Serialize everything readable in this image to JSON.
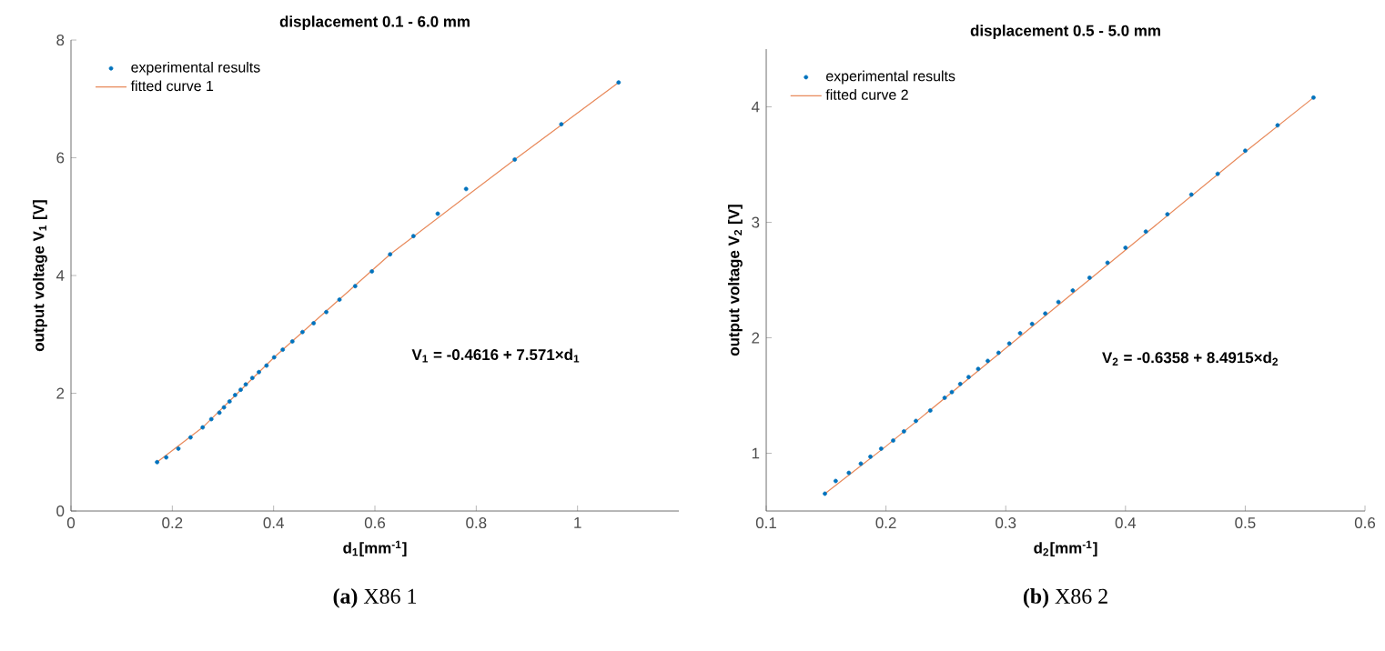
{
  "chart_data": [
    {
      "type": "scatter",
      "title": "displacement 0.1 - 6.0 mm",
      "xlabel": "d$_{1}$[mm$^{-1}$]",
      "ylabel": "output voltage V$_{1}$ [V]",
      "xlim": [
        0,
        1.2
      ],
      "xticks": [
        0,
        0.2,
        0.4,
        0.6,
        0.8,
        1
      ],
      "ylim": [
        0,
        8
      ],
      "yticks": [
        0,
        2,
        4,
        6,
        8
      ],
      "legend": "top left",
      "grid": false,
      "annotations": [
        "V$_{1}$ = -0.4616 + 7.571×d$_{1}$",
        "**(a)** X86 1"
      ],
      "series": [
        {
          "name": "experimental results",
          "type": "scatter",
          "marker": "circle",
          "color": "#0072bd",
          "x": [
            0.17,
            0.188,
            0.212,
            0.236,
            0.26,
            0.277,
            0.293,
            0.302,
            0.313,
            0.324,
            0.335,
            0.345,
            0.358,
            0.371,
            0.386,
            0.401,
            0.418,
            0.437,
            0.457,
            0.479,
            0.504,
            0.53,
            0.561,
            0.594,
            0.63,
            0.676,
            0.724,
            0.78,
            0.876,
            0.968,
            1.081
          ],
          "values": [
            0.83,
            0.91,
            1.06,
            1.25,
            1.42,
            1.56,
            1.67,
            1.76,
            1.86,
            1.97,
            2.06,
            2.15,
            2.26,
            2.36,
            2.47,
            2.61,
            2.74,
            2.88,
            3.04,
            3.19,
            3.38,
            3.59,
            3.82,
            4.07,
            4.36,
            4.67,
            5.05,
            5.47,
            5.97,
            6.57,
            7.28
          ]
        },
        {
          "name": "fitted curve 1",
          "type": "line",
          "marker": "none",
          "line_style": "solid",
          "color": "#e8895a",
          "x": [
            0.17,
            0.26,
            0.401,
            0.63,
            0.876,
            1.081
          ],
          "values": [
            0.83,
            1.42,
            2.61,
            4.36,
            5.97,
            7.28
          ]
        }
      ]
    },
    {
      "type": "scatter",
      "title": "displacement 0.5 - 5.0 mm",
      "xlabel": "d$_{2}$[mm$^{-1}$]",
      "ylabel": "output voltage V$_{2}$ [V]",
      "xlim": [
        0.1,
        0.6
      ],
      "xticks": [
        0.1,
        0.2,
        0.3,
        0.4,
        0.5,
        0.6
      ],
      "ylim": [
        0.5,
        4.5
      ],
      "yticks": [
        1,
        2,
        3,
        4
      ],
      "legend": "top left",
      "grid": false,
      "annotations": [
        "V$_{2}$ = -0.6358 + 8.4915×d$_{2}$",
        "**(b)** X86 2"
      ],
      "series": [
        {
          "name": "experimental results",
          "type": "scatter",
          "marker": "circle",
          "color": "#0072bd",
          "x": [
            0.149,
            0.158,
            0.169,
            0.179,
            0.187,
            0.196,
            0.206,
            0.215,
            0.225,
            0.237,
            0.249,
            0.255,
            0.262,
            0.269,
            0.277,
            0.285,
            0.294,
            0.303,
            0.312,
            0.322,
            0.333,
            0.344,
            0.356,
            0.37,
            0.385,
            0.4,
            0.417,
            0.435,
            0.455,
            0.477,
            0.5,
            0.527,
            0.557
          ],
          "values": [
            0.65,
            0.76,
            0.83,
            0.91,
            0.97,
            1.04,
            1.11,
            1.19,
            1.28,
            1.37,
            1.48,
            1.53,
            1.6,
            1.66,
            1.73,
            1.8,
            1.87,
            1.95,
            2.04,
            2.12,
            2.21,
            2.31,
            2.41,
            2.52,
            2.65,
            2.78,
            2.92,
            3.07,
            3.24,
            3.42,
            3.62,
            3.84,
            4.08
          ]
        },
        {
          "name": "fitted curve 2",
          "type": "line",
          "marker": "none",
          "line_style": "solid",
          "color": "#e8895a",
          "x": [
            0.149,
            0.2,
            0.3,
            0.4,
            0.5,
            0.557
          ],
          "values": [
            0.65,
            1.06,
            1.91,
            2.76,
            3.61,
            4.08
          ]
        }
      ]
    }
  ]
}
